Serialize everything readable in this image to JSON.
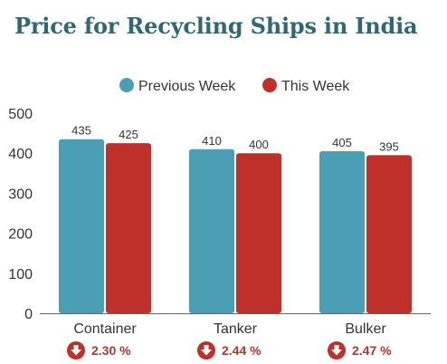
{
  "title": "Price for Recycling Ships in India",
  "chart_data": {
    "type": "bar",
    "categories": [
      "Container",
      "Tanker",
      "Bulker"
    ],
    "series": [
      {
        "name": "Previous Week",
        "values": [
          435,
          410,
          405
        ],
        "color": "#4a9fb4"
      },
      {
        "name": "This Week",
        "values": [
          425,
          400,
          395
        ],
        "color": "#c0302b"
      }
    ],
    "ylim": [
      0,
      500
    ],
    "yticks": [
      0,
      100,
      200,
      300,
      400,
      500
    ],
    "legend_position": "top-center",
    "grid": false,
    "changes": [
      {
        "category": "Container",
        "text": "2.30 %",
        "direction": "down"
      },
      {
        "category": "Tanker",
        "text": "2.44 %",
        "direction": "down"
      },
      {
        "category": "Bulker",
        "text": "2.47 %",
        "direction": "down"
      }
    ],
    "change_icon": "down-arrow-circle-icon"
  }
}
